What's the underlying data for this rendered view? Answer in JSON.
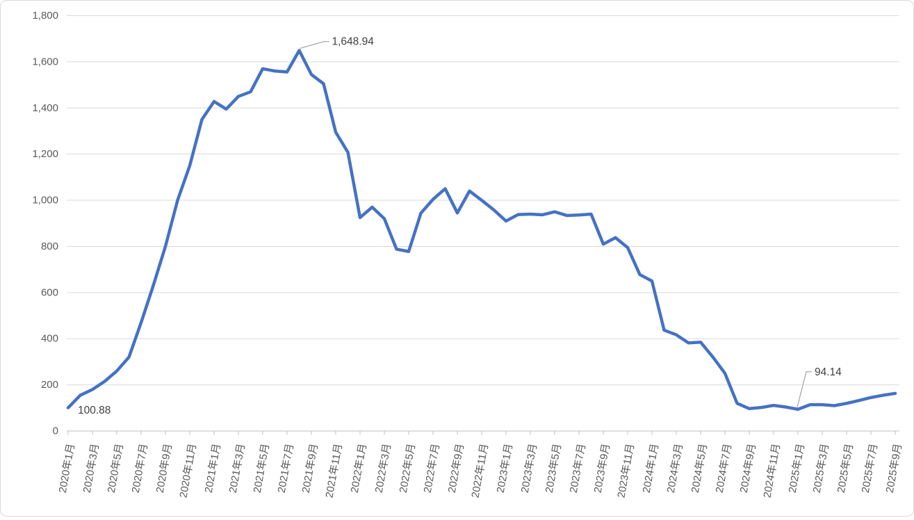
{
  "chart_data": {
    "type": "line",
    "title": "",
    "xlabel": "",
    "ylabel": "",
    "ylim": [
      0,
      1800
    ],
    "y_tick_step": 200,
    "grid": true,
    "legend": "none",
    "x_tick_every": 2,
    "x_categories": [
      "2020年1月",
      "2020年2月",
      "2020年3月",
      "2020年4月",
      "2020年5月",
      "2020年6月",
      "2020年7月",
      "2020年8月",
      "2020年9月",
      "2020年10月",
      "2020年11月",
      "2020年12月",
      "2021年1月",
      "2021年2月",
      "2021年3月",
      "2021年4月",
      "2021年5月",
      "2021年6月",
      "2021年7月",
      "2021年8月",
      "2021年9月",
      "2021年10月",
      "2021年11月",
      "2021年12月",
      "2022年1月",
      "2022年2月",
      "2022年3月",
      "2022年4月",
      "2022年5月",
      "2022年6月",
      "2022年7月",
      "2022年8月",
      "2022年9月",
      "2022年10月",
      "2022年11月",
      "2022年12月",
      "2023年1月",
      "2023年2月",
      "2023年3月",
      "2023年4月",
      "2023年5月",
      "2023年6月",
      "2023年7月",
      "2023年8月",
      "2023年9月",
      "2023年10月",
      "2023年11月",
      "2023年12月",
      "2024年1月",
      "2024年2月",
      "2024年3月",
      "2024年4月",
      "2024年5月",
      "2024年6月",
      "2024年7月",
      "2024年8月",
      "2024年9月",
      "2024年10月",
      "2024年11月",
      "2024年12月",
      "2025年1月",
      "2025年2月",
      "2025年3月",
      "2025年4月",
      "2025年5月",
      "2025年6月",
      "2025年7月",
      "2025年8月",
      "2025年9月"
    ],
    "series": [
      {
        "name": "value",
        "values": [
          100.88,
          155,
          180,
          215,
          260,
          320,
          470,
          630,
          800,
          1000,
          1150,
          1350,
          1428,
          1395,
          1450,
          1470,
          1570,
          1560,
          1556,
          1648.94,
          1545,
          1505,
          1295,
          1208,
          925,
          970,
          920,
          788,
          778,
          944,
          1004,
          1050,
          945,
          1040,
          1000,
          958,
          910,
          938,
          940,
          937,
          950,
          934,
          936,
          940,
          810,
          838,
          795,
          678,
          650,
          437,
          417,
          382,
          385,
          321,
          250,
          120,
          97,
          102,
          111,
          104,
          94.14,
          114,
          114,
          110,
          120,
          132,
          145,
          155,
          163
        ]
      }
    ],
    "annotations": [
      {
        "index": 0,
        "text": "100.88",
        "placement": "start"
      },
      {
        "index": 19,
        "text": "1,648.94",
        "placement": "peak"
      },
      {
        "index": 60,
        "text": "94.14",
        "placement": "min"
      }
    ],
    "y_tick_labels": [
      "0",
      "200",
      "400",
      "600",
      "800",
      "1,000",
      "1,200",
      "1,400",
      "1,600",
      "1,800"
    ],
    "colors": {
      "line": "#4472C4",
      "grid": "#D9D9D9",
      "axis": "#BFBFBF",
      "tick_label": "#595959",
      "annotation_text": "#404040",
      "leader": "#A6A6A6",
      "background": "#FFFFFF",
      "border": "#D9D9D9"
    }
  }
}
